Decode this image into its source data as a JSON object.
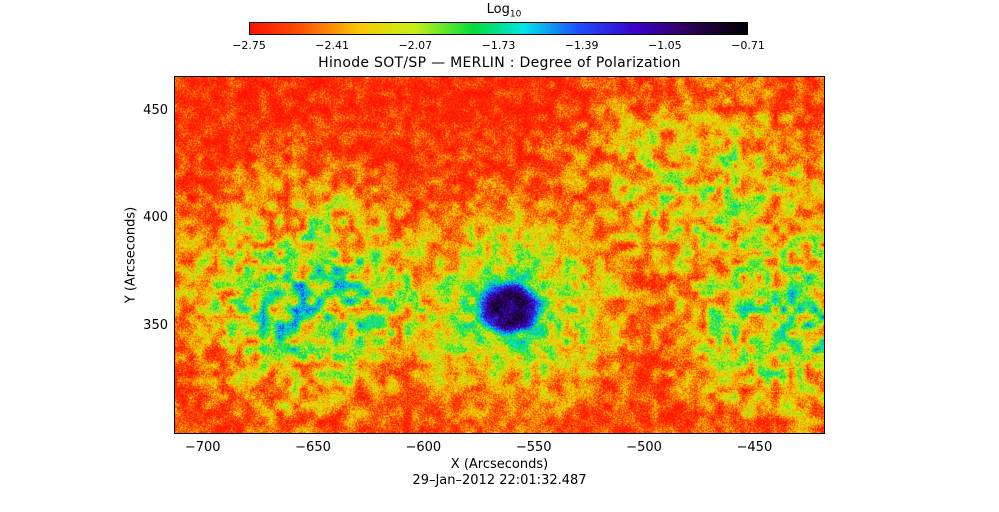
{
  "chart_data": {
    "type": "heatmap",
    "title": "Hinode SOT/SP — MERLIN : Degree of Polarization",
    "xlabel": "X (Arcseconds)",
    "ylabel": "Y (Arcseconds)",
    "timestamp": "29–Jan–2012 22:01:32.487",
    "xlim": [
      -713,
      -418
    ],
    "ylim": [
      300,
      466
    ],
    "xticks": [
      -700,
      -650,
      -600,
      -550,
      -500,
      -450
    ],
    "xtick_labels": [
      "−700",
      "−650",
      "−600",
      "−550",
      "−500",
      "−450"
    ],
    "yticks": [
      350,
      400,
      450
    ],
    "ytick_labels": [
      "350",
      "400",
      "450"
    ],
    "colorbar": {
      "title": "Log",
      "title_subscript": "10",
      "range": [
        -2.75,
        -0.71
      ],
      "ticks": [
        -2.75,
        -2.41,
        -2.07,
        -1.73,
        -1.39,
        -1.05,
        -0.71
      ],
      "tick_labels": [
        "−2.75",
        "−2.41",
        "−2.07",
        "−1.73",
        "−1.39",
        "−1.05",
        "−0.71"
      ],
      "colormap": "rainbow (red → orange → yellow → green → cyan → blue → purple → black)"
    },
    "features": [
      {
        "kind": "sunspot",
        "center": [
          -561,
          358
        ],
        "peak_value": -0.9
      },
      {
        "kind": "plage",
        "center": [
          -650,
          362
        ],
        "value": -1.7
      },
      {
        "kind": "plage",
        "center": [
          -430,
          355
        ],
        "value": -1.8
      },
      {
        "kind": "plage",
        "center": [
          -470,
          410
        ],
        "value": -2.0
      }
    ],
    "background_value": -2.7
  }
}
